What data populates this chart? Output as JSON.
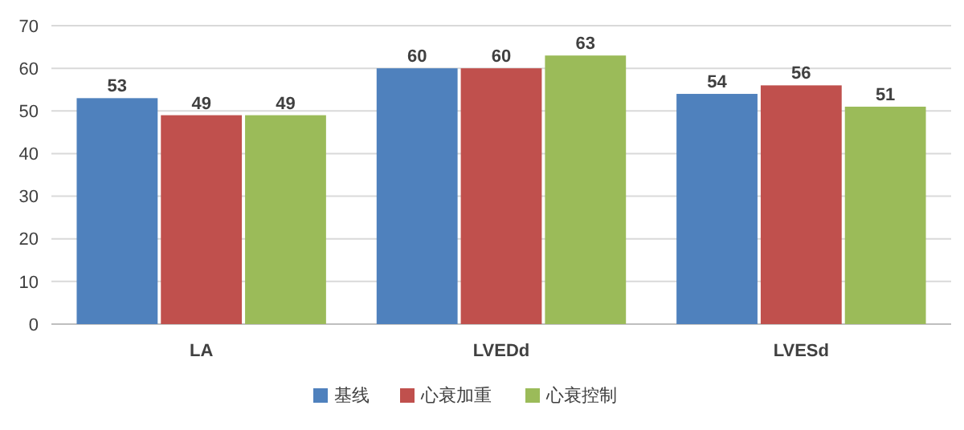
{
  "chart_data": {
    "type": "bar",
    "categories": [
      "LA",
      "LVEDd",
      "LVESd"
    ],
    "series": [
      {
        "name": "基线",
        "color": "#4f81bd",
        "values": [
          53,
          60,
          54
        ]
      },
      {
        "name": "心衰加重",
        "color": "#c0504d",
        "values": [
          49,
          60,
          56
        ]
      },
      {
        "name": "心衰控制",
        "color": "#9bbb59",
        "values": [
          49,
          63,
          51
        ]
      }
    ],
    "ylim": [
      0,
      70
    ],
    "yticks": [
      0,
      10,
      20,
      30,
      40,
      50,
      60,
      70
    ],
    "grid": "y",
    "legend": "bottom",
    "data_labels": true
  }
}
